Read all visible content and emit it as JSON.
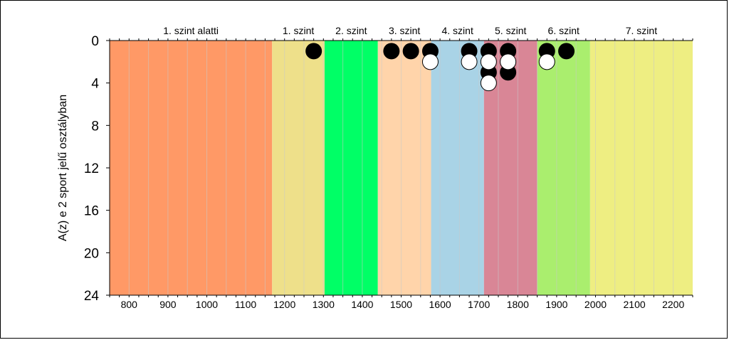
{
  "chart_data": {
    "type": "scatter",
    "title": "",
    "xlabel": "",
    "ylabel": "A(z) e 2 sport jelű osztályban",
    "xlim": [
      750,
      2250
    ],
    "ylim": [
      0,
      24
    ],
    "y_inverted": true,
    "x_ticks": [
      800,
      900,
      1000,
      1100,
      1200,
      1300,
      1400,
      1500,
      1600,
      1700,
      1800,
      1900,
      2000,
      2100,
      2200
    ],
    "y_ticks": [
      0,
      4,
      8,
      12,
      16,
      20,
      24
    ],
    "grid": "vertical",
    "bands": [
      {
        "label": "1. szint alatti",
        "from": 750,
        "to": 1168,
        "color": "#FF9966"
      },
      {
        "label": "1. szint",
        "from": 1168,
        "to": 1303,
        "color": "#EEE08A"
      },
      {
        "label": "2. szint",
        "from": 1303,
        "to": 1440,
        "color": "#00FF66"
      },
      {
        "label": "3. szint",
        "from": 1440,
        "to": 1577,
        "color": "#FFD4AA"
      },
      {
        "label": "4. szint",
        "from": 1577,
        "to": 1713,
        "color": "#A9D3E6"
      },
      {
        "label": "5. szint",
        "from": 1713,
        "to": 1850,
        "color": "#D98696"
      },
      {
        "label": "6. szint",
        "from": 1850,
        "to": 1986,
        "color": "#AAEE6E"
      },
      {
        "label": "7. szint",
        "from": 1986,
        "to": 2250,
        "color": "#EEEE82"
      }
    ],
    "series": [
      {
        "marker": "black-circle",
        "color": "#000000",
        "points": [
          {
            "x": 1275,
            "y": 1
          },
          {
            "x": 1475,
            "y": 1
          },
          {
            "x": 1525,
            "y": 1
          },
          {
            "x": 1575,
            "y": 1
          },
          {
            "x": 1675,
            "y": 1
          },
          {
            "x": 1725,
            "y": 1
          },
          {
            "x": 1725,
            "y": 3
          },
          {
            "x": 1775,
            "y": 1
          },
          {
            "x": 1775,
            "y": 3
          },
          {
            "x": 1875,
            "y": 1
          },
          {
            "x": 1925,
            "y": 1
          }
        ]
      },
      {
        "marker": "white-circle",
        "color": "#FFFFFF",
        "points": [
          {
            "x": 1575,
            "y": 2
          },
          {
            "x": 1675,
            "y": 2
          },
          {
            "x": 1725,
            "y": 2
          },
          {
            "x": 1725,
            "y": 4
          },
          {
            "x": 1775,
            "y": 2
          },
          {
            "x": 1875,
            "y": 2
          }
        ]
      }
    ]
  }
}
